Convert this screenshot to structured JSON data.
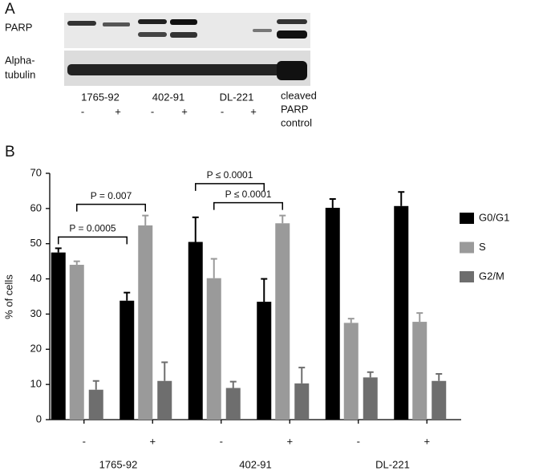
{
  "panel_a": {
    "label": "A",
    "row_labels": [
      "PARP",
      "Alpha-",
      "tubulin"
    ],
    "cell_lines": [
      "1765-92",
      "402-91",
      "DL-221"
    ],
    "treatments": [
      "-",
      "+",
      "-",
      "+",
      "-",
      "+"
    ],
    "control_label": [
      "cleaved",
      "PARP",
      "control"
    ]
  },
  "panel_b": {
    "label": "B"
  },
  "chart_data": {
    "type": "bar",
    "ylabel": "% of cells",
    "categories": [
      "-",
      "+",
      "-",
      "+",
      "-",
      "+"
    ],
    "groups": [
      "1765-92",
      "402-91",
      "DL-221"
    ],
    "series": [
      {
        "name": "G0/G1",
        "color": "#000000",
        "values": [
          47.5,
          33.8,
          50.5,
          33.5,
          60.2,
          60.7
        ],
        "errors": [
          1.2,
          2.3,
          7,
          6.5,
          2.5,
          4
        ]
      },
      {
        "name": "S",
        "color": "#9a9a9a",
        "values": [
          44,
          55.2,
          40.2,
          55.8,
          27.5,
          27.8
        ],
        "errors": [
          1,
          2.8,
          5.5,
          2.2,
          1.2,
          2.5
        ]
      },
      {
        "name": "G2/M",
        "color": "#6e6e6e",
        "values": [
          8.5,
          11,
          9,
          10.3,
          12,
          11
        ],
        "errors": [
          2.5,
          5.3,
          1.8,
          4.5,
          1.5,
          2
        ]
      }
    ],
    "annotations": [
      "P = 0.0005",
      "P = 0.007",
      "P ≤ 0.0001",
      "P ≤ 0.0001"
    ],
    "ylim": [
      0,
      70
    ],
    "yticks": [
      0,
      10,
      20,
      30,
      40,
      50,
      60,
      70
    ],
    "legend": "right"
  }
}
